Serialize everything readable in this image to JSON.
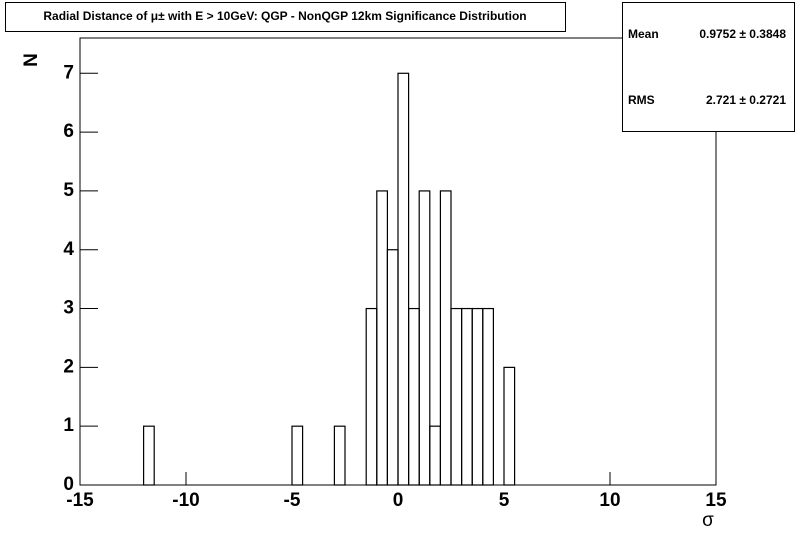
{
  "chart_data": {
    "type": "histogram",
    "title": "Radial Distance of μ± with E > 10GeV: QGP - NonQGP 12km Significance Distribution",
    "x_label": "σ",
    "y_label": "N",
    "bins": [
      -15,
      -14.5,
      -14,
      -13.5,
      -13,
      -12.5,
      -12,
      -11.5,
      -11,
      -10.5,
      -10,
      -9.5,
      -9,
      -8.5,
      -8,
      -7.5,
      -7,
      -6.5,
      -6,
      -5.5,
      -5,
      -4.5,
      -4,
      -3.5,
      -3,
      -2.5,
      -2,
      -1.5,
      -1,
      -0.5,
      0,
      0.5,
      1,
      1.5,
      2,
      2.5,
      3,
      3.5,
      4,
      4.5,
      5,
      5.5,
      6,
      6.5,
      7,
      7.5,
      8,
      8.5,
      9,
      9.5,
      10,
      10.5,
      11,
      11.5,
      12,
      12.5,
      13,
      13.5,
      14,
      14.5,
      15
    ],
    "values": [
      0,
      0,
      0,
      0,
      0,
      0,
      1,
      0,
      0,
      0,
      0,
      0,
      0,
      0,
      0,
      0,
      0,
      0,
      0,
      0,
      1,
      0,
      0,
      0,
      1,
      0,
      0,
      3,
      5,
      4,
      7,
      3,
      5,
      1,
      5,
      3,
      3,
      3,
      3,
      0,
      2,
      0,
      0,
      0,
      0,
      0,
      0,
      0,
      0,
      0,
      0,
      0,
      0,
      0,
      0,
      0,
      0,
      0,
      0,
      0
    ],
    "color": "#000000",
    "xlim": [
      -15,
      15
    ],
    "xticks": [
      -15,
      -10,
      -5,
      0,
      5,
      10,
      15
    ],
    "ylim": [
      0,
      7.6
    ],
    "yticks": [
      0,
      1,
      2,
      3,
      4,
      5,
      6,
      7
    ],
    "stats": {
      "mean_label": "Mean",
      "mean": "0.9752 ± 0.3848",
      "rms_label": "RMS",
      "rms": "2.721 ± 0.2721"
    }
  }
}
